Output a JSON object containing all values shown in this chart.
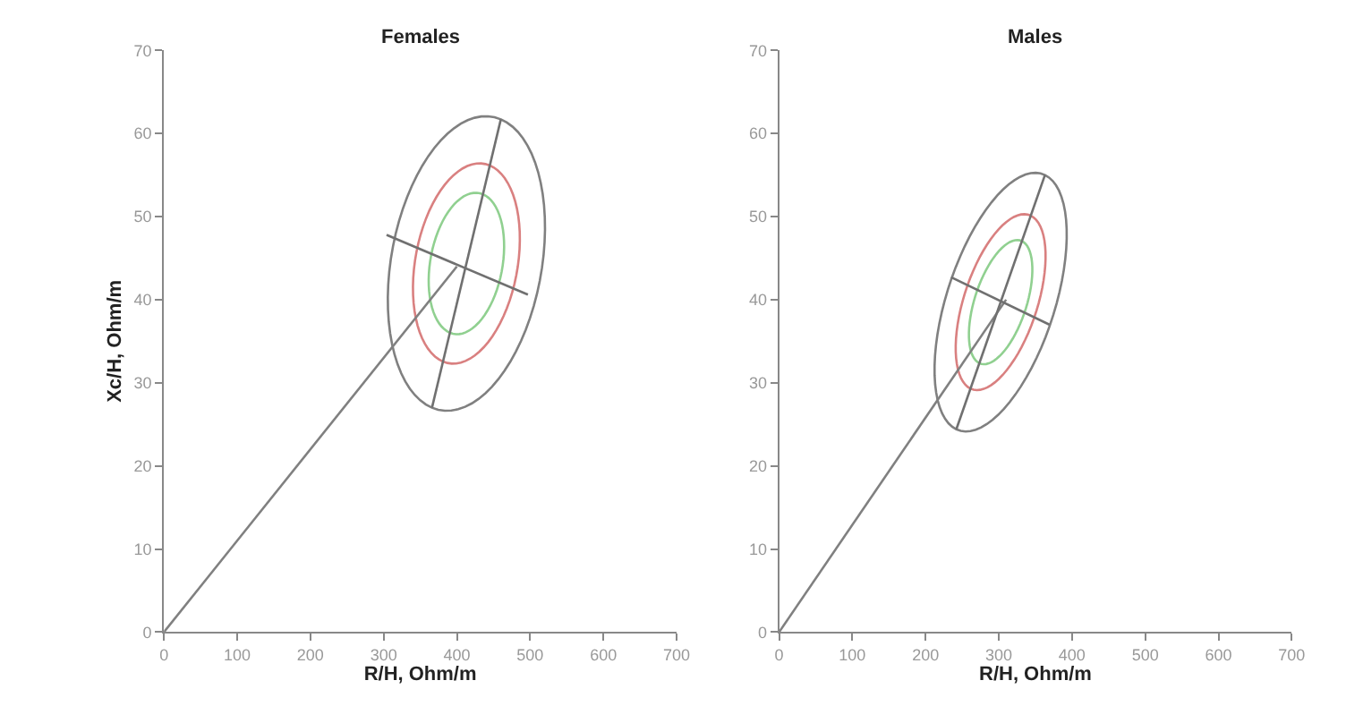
{
  "chart_data": [
    {
      "type": "line",
      "title": "Females",
      "xlabel": "R/H, Ohm/m",
      "ylabel": "Xc/H, Ohm/m",
      "xlim": [
        0,
        700
      ],
      "xticks": [
        0,
        100,
        200,
        300,
        400,
        500,
        600,
        700
      ],
      "ylim": [
        0,
        70
      ],
      "yticks": [
        0,
        10,
        20,
        30,
        40,
        50,
        60,
        70
      ],
      "grid": false,
      "series": [
        {
          "color": "#808080",
          "x": [
            0,
            400
          ],
          "values": [
            0,
            44
          ]
        },
        {
          "color": "#707070",
          "x": [
            366,
            460
          ],
          "values": [
            27,
            61.7
          ]
        },
        {
          "color": "#707070",
          "x": [
            304,
            497
          ],
          "values": [
            47.8,
            40.6
          ]
        }
      ]
    },
    {
      "type": "line",
      "title": "Males",
      "xlabel": "R/H, Ohm/m",
      "xlim": [
        0,
        700
      ],
      "xticks": [
        0,
        100,
        200,
        300,
        400,
        500,
        600,
        700
      ],
      "ylim": [
        0,
        70
      ],
      "yticks": [
        0,
        10,
        20,
        30,
        40,
        50,
        60,
        70
      ],
      "grid": false,
      "series": [
        {
          "color": "#808080",
          "x": [
            0,
            310
          ],
          "values": [
            0,
            40
          ]
        },
        {
          "color": "#707070",
          "x": [
            242,
            363
          ],
          "values": [
            24.4,
            55
          ]
        },
        {
          "color": "#707070",
          "x": [
            235,
            369
          ],
          "values": [
            42.7,
            37
          ]
        }
      ]
    }
  ]
}
